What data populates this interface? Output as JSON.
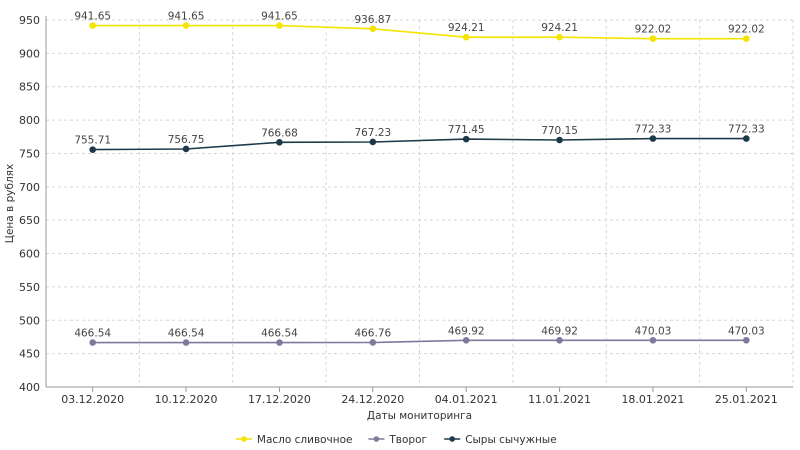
{
  "chart_data": {
    "type": "line",
    "title": "",
    "xlabel": "Даты мониторинга",
    "ylabel": "Цена в рублях",
    "ylim": [
      400,
      950
    ],
    "yticks": [
      400,
      450,
      500,
      550,
      600,
      650,
      700,
      750,
      800,
      850,
      900,
      950
    ],
    "grid": true,
    "legend_position": "bottom",
    "categories": [
      "03.12.2020",
      "10.12.2020",
      "17.12.2020",
      "24.12.2020",
      "04.01.2021",
      "11.01.2021",
      "18.01.2021",
      "25.01.2021"
    ],
    "series": [
      {
        "name": "Масло сливочное",
        "color": "#f4e400",
        "values": [
          941.65,
          941.65,
          941.65,
          936.87,
          924.21,
          924.21,
          922.02,
          922.02
        ],
        "value_labels": [
          "941.65",
          "941.65",
          "941.65",
          "936.87",
          "924.21",
          "924.21",
          "922.02",
          "922.02"
        ]
      },
      {
        "name": "Творог",
        "color": "#7e7a9c",
        "values": [
          466.54,
          466.54,
          466.54,
          466.76,
          469.92,
          469.92,
          470.03,
          470.03
        ],
        "value_labels": [
          "466.54",
          "466.54",
          "466.54",
          "466.76",
          "469.92",
          "469.92",
          "470.03",
          "470.03"
        ]
      },
      {
        "name": "Сыры сычужные",
        "color": "#1c3a4a",
        "values": [
          755.71,
          756.75,
          766.68,
          767.23,
          771.45,
          770.15,
          772.33,
          772.33
        ],
        "value_labels": [
          "755.71",
          "756.75",
          "766.68",
          "767.23",
          "771.45",
          "770.15",
          "772.33",
          "772.33"
        ]
      }
    ]
  }
}
